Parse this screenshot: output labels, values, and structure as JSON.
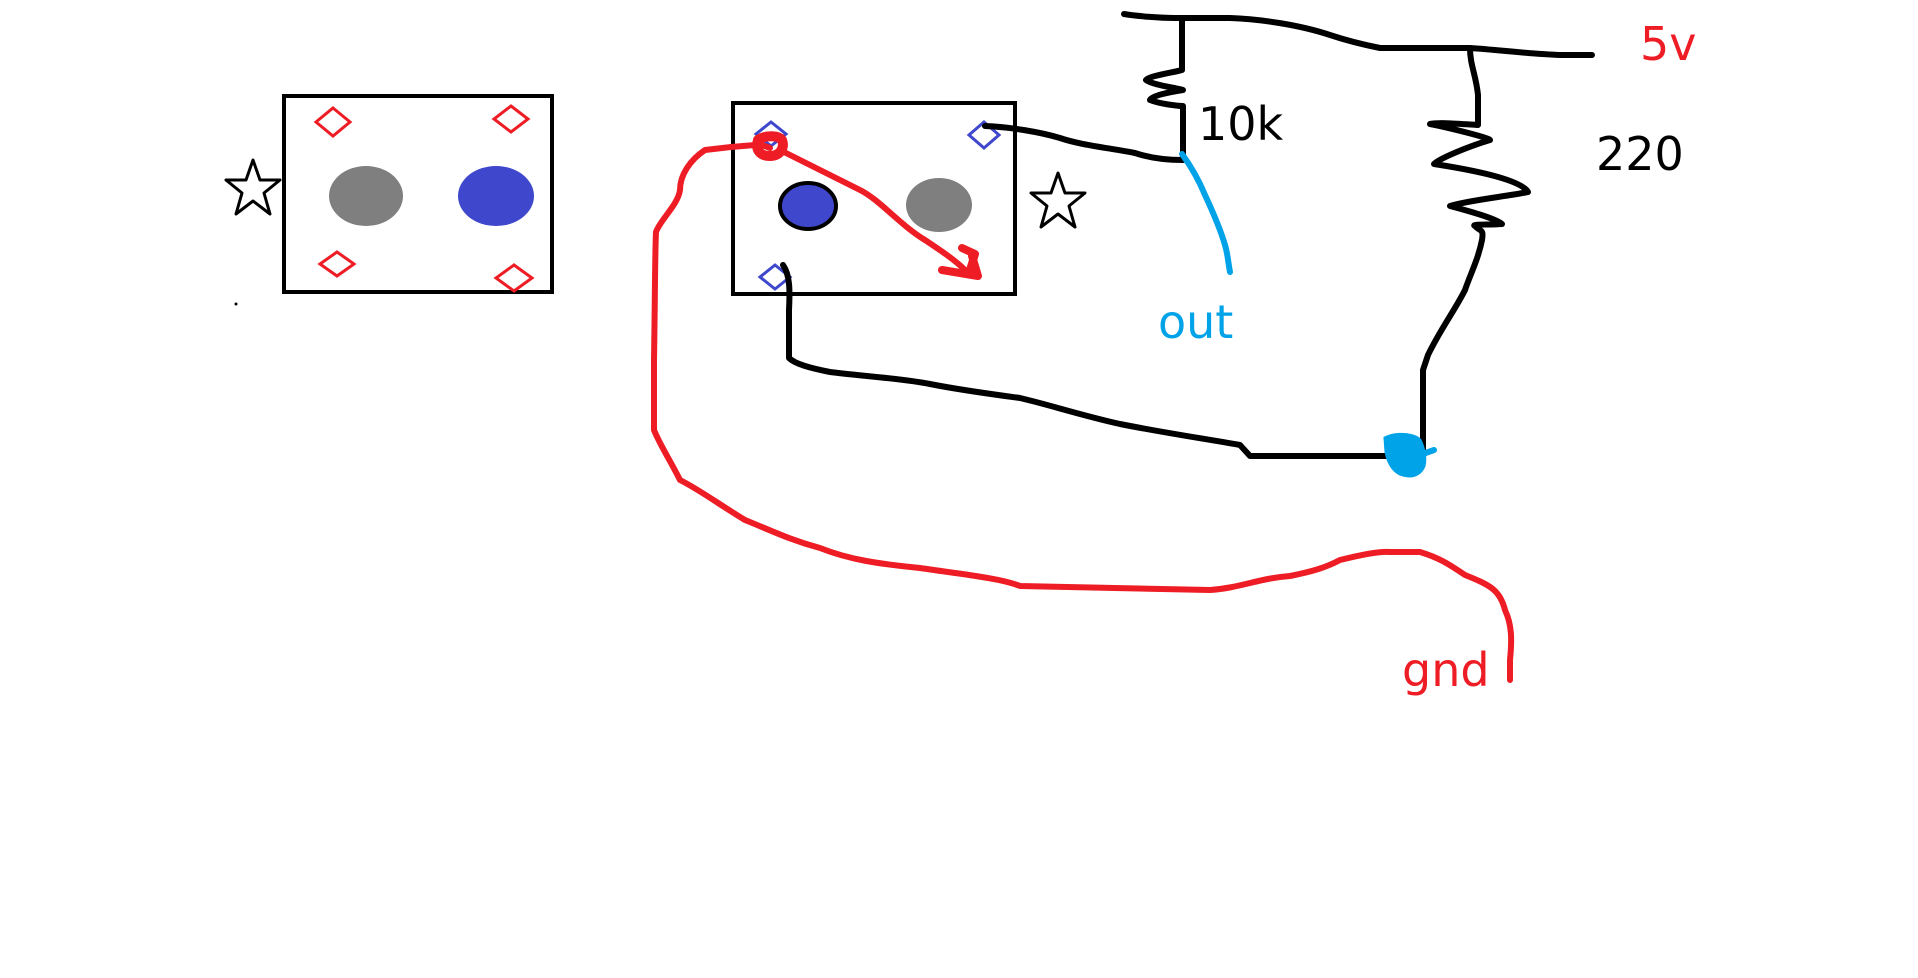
{
  "labels": {
    "resistor_top": "10k",
    "resistor_right": "220",
    "supply": "5v",
    "output": "out",
    "ground": "gnd"
  },
  "colors": {
    "black_wire": "#000000",
    "red_wire": "#ee1c24",
    "blue_wire": "#00a2e8",
    "blue_led": "#3f48cc",
    "gray_led": "#7f7f7f",
    "red_pin": "#ee1c24",
    "blue_pin": "#3f48cc"
  },
  "icons": [
    "star-icon",
    "diamond-pin-icon"
  ]
}
